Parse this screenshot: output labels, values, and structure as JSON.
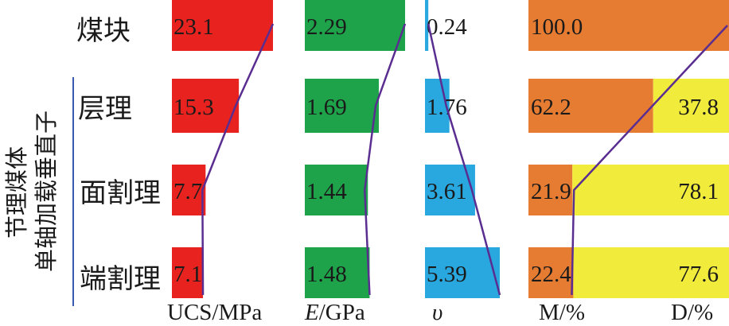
{
  "chart_data": {
    "type": "bar",
    "orientation": "horizontal",
    "categories": [
      "煤块",
      "层理",
      "面割理",
      "端割理"
    ],
    "group_label": [
      "节理煤体",
      "单轴加载垂直子"
    ],
    "panels": [
      {
        "key": "ucs",
        "xlabel": "UCS/MPa",
        "color": "#e8231f",
        "values": [
          23.1,
          15.3,
          7.7,
          7.1
        ],
        "labels": [
          "23.1",
          "15.3",
          "7.7",
          "7.1"
        ]
      },
      {
        "key": "e",
        "xlabel_italic": "E",
        "xlabel_rest": "/GPa",
        "color": "#1ea34a",
        "values": [
          2.29,
          1.69,
          1.44,
          1.48
        ],
        "labels": [
          "2.29",
          "1.69",
          "1.44",
          "1.48"
        ]
      },
      {
        "key": "v",
        "xlabel": "υ",
        "color": "#29a8e0",
        "values": [
          0.24,
          1.76,
          3.61,
          5.39
        ],
        "labels": [
          "0.24",
          "1.76",
          "3.61",
          "5.39"
        ]
      },
      {
        "key": "md",
        "type": "stacked",
        "xlabel_m": "M/%",
        "xlabel_d": "D/%",
        "series": [
          {
            "name": "M",
            "color": "#e57c32",
            "values": [
              100.0,
              62.2,
              21.9,
              22.4
            ],
            "labels": [
              "100.0",
              "62.2",
              "21.9",
              "22.4"
            ]
          },
          {
            "name": "D",
            "color": "#f1ec3b",
            "values": [
              0.0,
              37.8,
              78.1,
              77.6
            ],
            "labels": [
              "",
              "37.8",
              "78.1",
              "77.6"
            ]
          }
        ]
      }
    ],
    "trend_line_color": "#5a2d91",
    "grid": false,
    "legend": "none"
  }
}
